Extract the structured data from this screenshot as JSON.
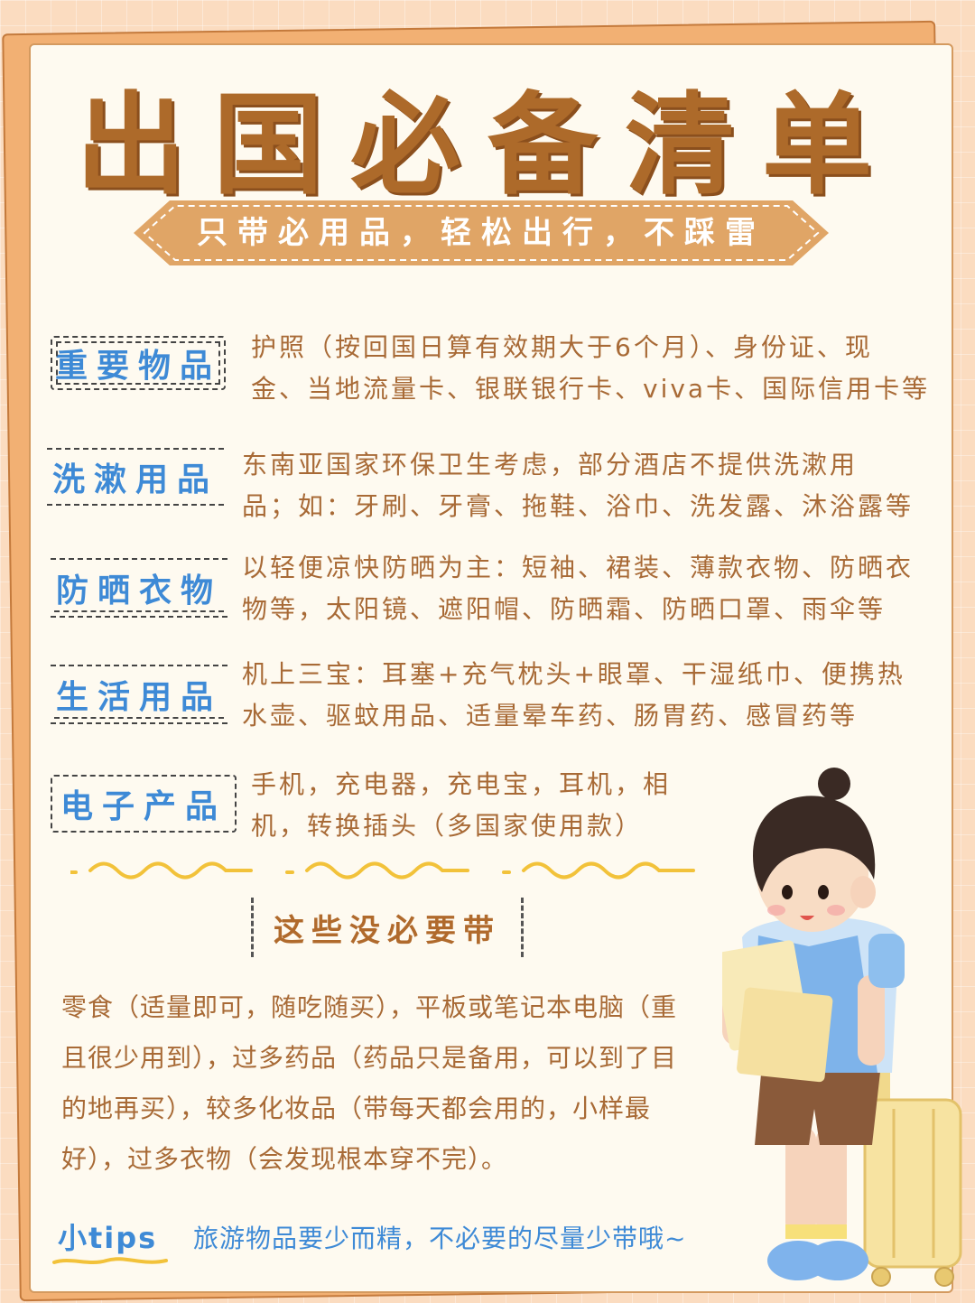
{
  "title": "出国必备清单",
  "subtitle": "只带必用品，轻松出行，不踩雷",
  "sections": [
    {
      "label": "重要物品",
      "line1": "护照（按回国日算有效期大于6个月）、身份证、现",
      "line2": "金、当地流量卡、银联银行卡、viva卡、国际信用卡等"
    },
    {
      "label": "洗漱用品",
      "line1": "东南亚国家环保卫生考虑，部分酒店不提供洗漱用",
      "line2": "品；如：牙刷、牙膏、拖鞋、浴巾、洗发露、沐浴露等"
    },
    {
      "label": "防晒衣物",
      "line1": "以轻便凉快防晒为主：短袖、裙装、薄款衣物、防晒衣",
      "line2": "物等，太阳镜、遮阳帽、防晒霜、防晒口罩、雨伞等"
    },
    {
      "label": "生活用品",
      "line1": "机上三宝：耳塞+充气枕头+眼罩、干湿纸巾、便携热",
      "line2": "水壶、驱蚊用品、适量晕车药、肠胃药、感冒药等"
    },
    {
      "label": "电子产品",
      "line1": "手机，充电器，充电宝，耳机，相",
      "line2": "机，转换插头（多国家使用款）"
    }
  ],
  "not_needed": {
    "label": "这些没必要带",
    "lines": [
      "零食（适量即可，随吃随买），平板或笔记本电脑（重",
      "且很少用到），过多药品（药品只是备用，可以到了目",
      "的地再买），较多化妆品（带每天都会用的，小样最",
      "好），过多衣物（会发现根本穿不完）。"
    ]
  },
  "tips": {
    "label": "小tips",
    "text": "旅游物品要少而精，不必要的尽量少带哦~"
  },
  "colors": {
    "title": "#ad6a2a",
    "banner": "#e0a566",
    "label_blue": "#3e8ad6",
    "body_text": "#a86a36",
    "paper": "#fefaf0",
    "background": "#fbdcc0"
  },
  "illustration": "boy-with-luggage"
}
